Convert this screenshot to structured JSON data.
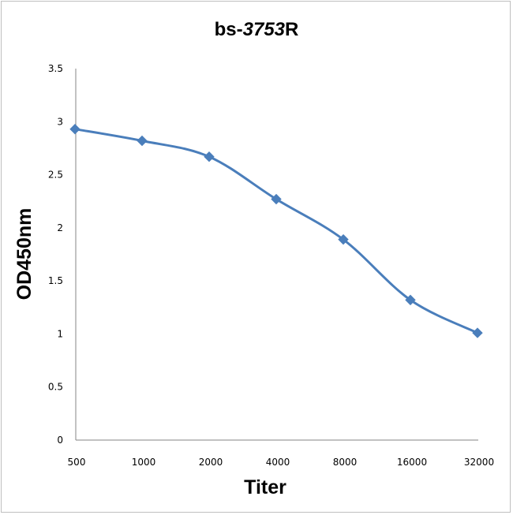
{
  "chart_data": {
    "type": "line",
    "title_prefix": "bs-",
    "title_italic": "3753",
    "title_suffix": "R",
    "xlabel": "Titer",
    "ylabel": "OD450nm",
    "categories": [
      "500",
      "1000",
      "2000",
      "4000",
      "8000",
      "16000",
      "32000"
    ],
    "series": [
      {
        "values": [
          2.93,
          2.82,
          2.67,
          2.27,
          1.89,
          1.32,
          1.01
        ]
      }
    ],
    "yticks": [
      "0",
      "0.5",
      "1",
      "1.5",
      "2",
      "2.5",
      "3",
      "3.5"
    ],
    "ylim": [
      0,
      3.5
    ],
    "grid": false,
    "smooth": true,
    "marker": "diamond",
    "line_color": "#4a7ebb",
    "marker_color": "#4a7ebb"
  }
}
